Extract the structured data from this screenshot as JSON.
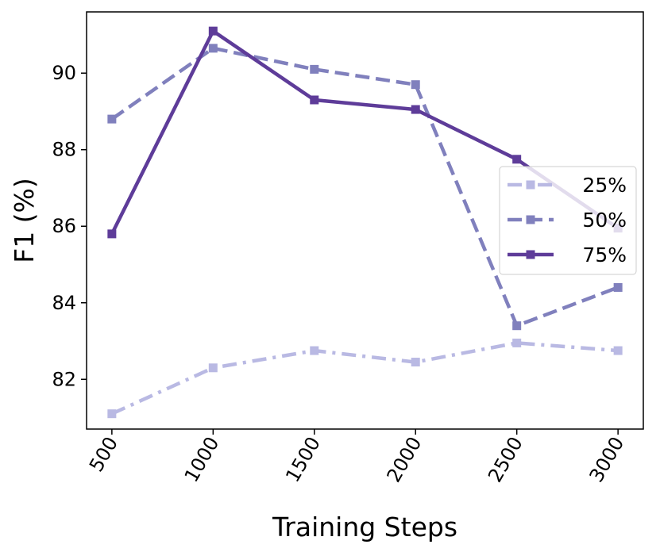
{
  "chart_data": {
    "type": "line",
    "title": "",
    "xlabel": "Training Steps",
    "ylabel": "F1 (%)",
    "x": [
      500,
      1000,
      1500,
      2000,
      2500,
      3000
    ],
    "x_tick_labels": [
      "500",
      "1000",
      "1500",
      "2000",
      "2500",
      "3000"
    ],
    "y_ticks": [
      82,
      84,
      86,
      88,
      90
    ],
    "y_tick_labels": [
      "82",
      "84",
      "86",
      "88",
      "90"
    ],
    "ylim": [
      80.7,
      91.6
    ],
    "grid": false,
    "legend_position": "center-right",
    "series": [
      {
        "name": "25%",
        "values": [
          81.1,
          82.3,
          82.75,
          82.45,
          82.95,
          82.75
        ],
        "color": "#b9b9e3",
        "dash": "dashdot"
      },
      {
        "name": "50%",
        "values": [
          88.8,
          90.65,
          90.1,
          89.7,
          83.4,
          84.4
        ],
        "color": "#8080bd",
        "dash": "dashed"
      },
      {
        "name": "75%",
        "values": [
          85.8,
          91.1,
          89.3,
          89.05,
          87.75,
          85.95
        ],
        "color": "#5e3c99",
        "dash": "solid"
      }
    ]
  }
}
